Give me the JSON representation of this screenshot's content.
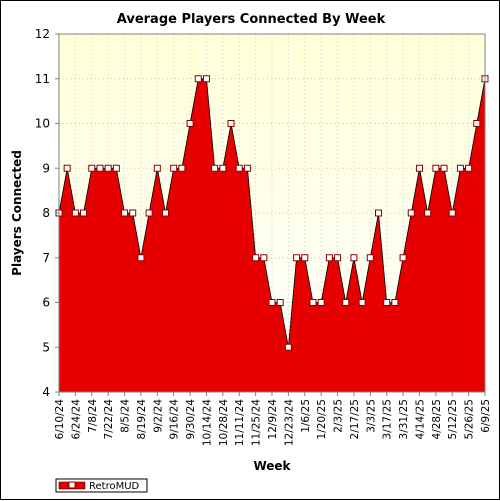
{
  "chart_data": {
    "type": "area",
    "title": "Average Players Connected By Week",
    "xlabel": "Week",
    "ylabel": "Players Connected",
    "ylim": [
      4,
      12
    ],
    "yticks": [
      4,
      5,
      6,
      7,
      8,
      9,
      10,
      11,
      12
    ],
    "grid": true,
    "legend_position": "bottom-left",
    "x_tick_labels": [
      "6/10/24",
      "6/24/24",
      "7/8/24",
      "7/22/24",
      "8/5/24",
      "8/19/24",
      "9/2/24",
      "9/16/24",
      "9/30/24",
      "10/14/24",
      "10/28/24",
      "11/11/24",
      "11/25/24",
      "12/9/24",
      "12/23/24",
      "1/6/25",
      "1/20/25",
      "2/3/25",
      "2/17/25",
      "3/3/25",
      "3/17/25",
      "3/31/25",
      "4/14/25",
      "4/28/25",
      "5/12/25",
      "5/26/25",
      "6/9/25"
    ],
    "x": [
      "6/10/24",
      "6/17/24",
      "6/24/24",
      "7/1/24",
      "7/8/24",
      "7/15/24",
      "7/22/24",
      "7/29/24",
      "8/5/24",
      "8/12/24",
      "8/19/24",
      "8/26/24",
      "9/2/24",
      "9/9/24",
      "9/16/24",
      "9/23/24",
      "9/30/24",
      "10/7/24",
      "10/14/24",
      "10/21/24",
      "10/28/24",
      "11/4/24",
      "11/11/24",
      "11/18/24",
      "11/25/24",
      "12/2/24",
      "12/9/24",
      "12/16/24",
      "12/23/24",
      "12/30/24",
      "1/6/25",
      "1/13/25",
      "1/20/25",
      "1/27/25",
      "2/3/25",
      "2/10/25",
      "2/17/25",
      "2/24/25",
      "3/3/25",
      "3/10/25",
      "3/17/25",
      "3/24/25",
      "3/31/25",
      "4/7/25",
      "4/14/25",
      "4/21/25",
      "4/28/25",
      "5/5/25",
      "5/12/25",
      "5/19/25",
      "5/26/25",
      "6/2/25",
      "6/9/25"
    ],
    "series": [
      {
        "name": "RetroMUD",
        "color": "#e60000",
        "values": [
          8,
          9,
          8,
          8,
          9,
          9,
          9,
          9,
          8,
          8,
          7,
          8,
          9,
          8,
          9,
          9,
          10,
          11,
          11,
          9,
          9,
          10,
          9,
          9,
          7,
          7,
          6,
          6,
          5,
          7,
          7,
          6,
          6,
          7,
          7,
          6,
          7,
          6,
          7,
          8,
          6,
          6,
          7,
          8,
          9,
          8,
          9,
          9,
          8,
          9,
          9,
          10,
          11
        ]
      }
    ]
  },
  "colors": {
    "plot_bg_top": "#ffffd8",
    "plot_bg_bottom": "#ffffff",
    "area_fill": "#e60000",
    "line": "#000000",
    "marker_stroke": "#8b0000",
    "marker_fill": "#ffffff"
  }
}
